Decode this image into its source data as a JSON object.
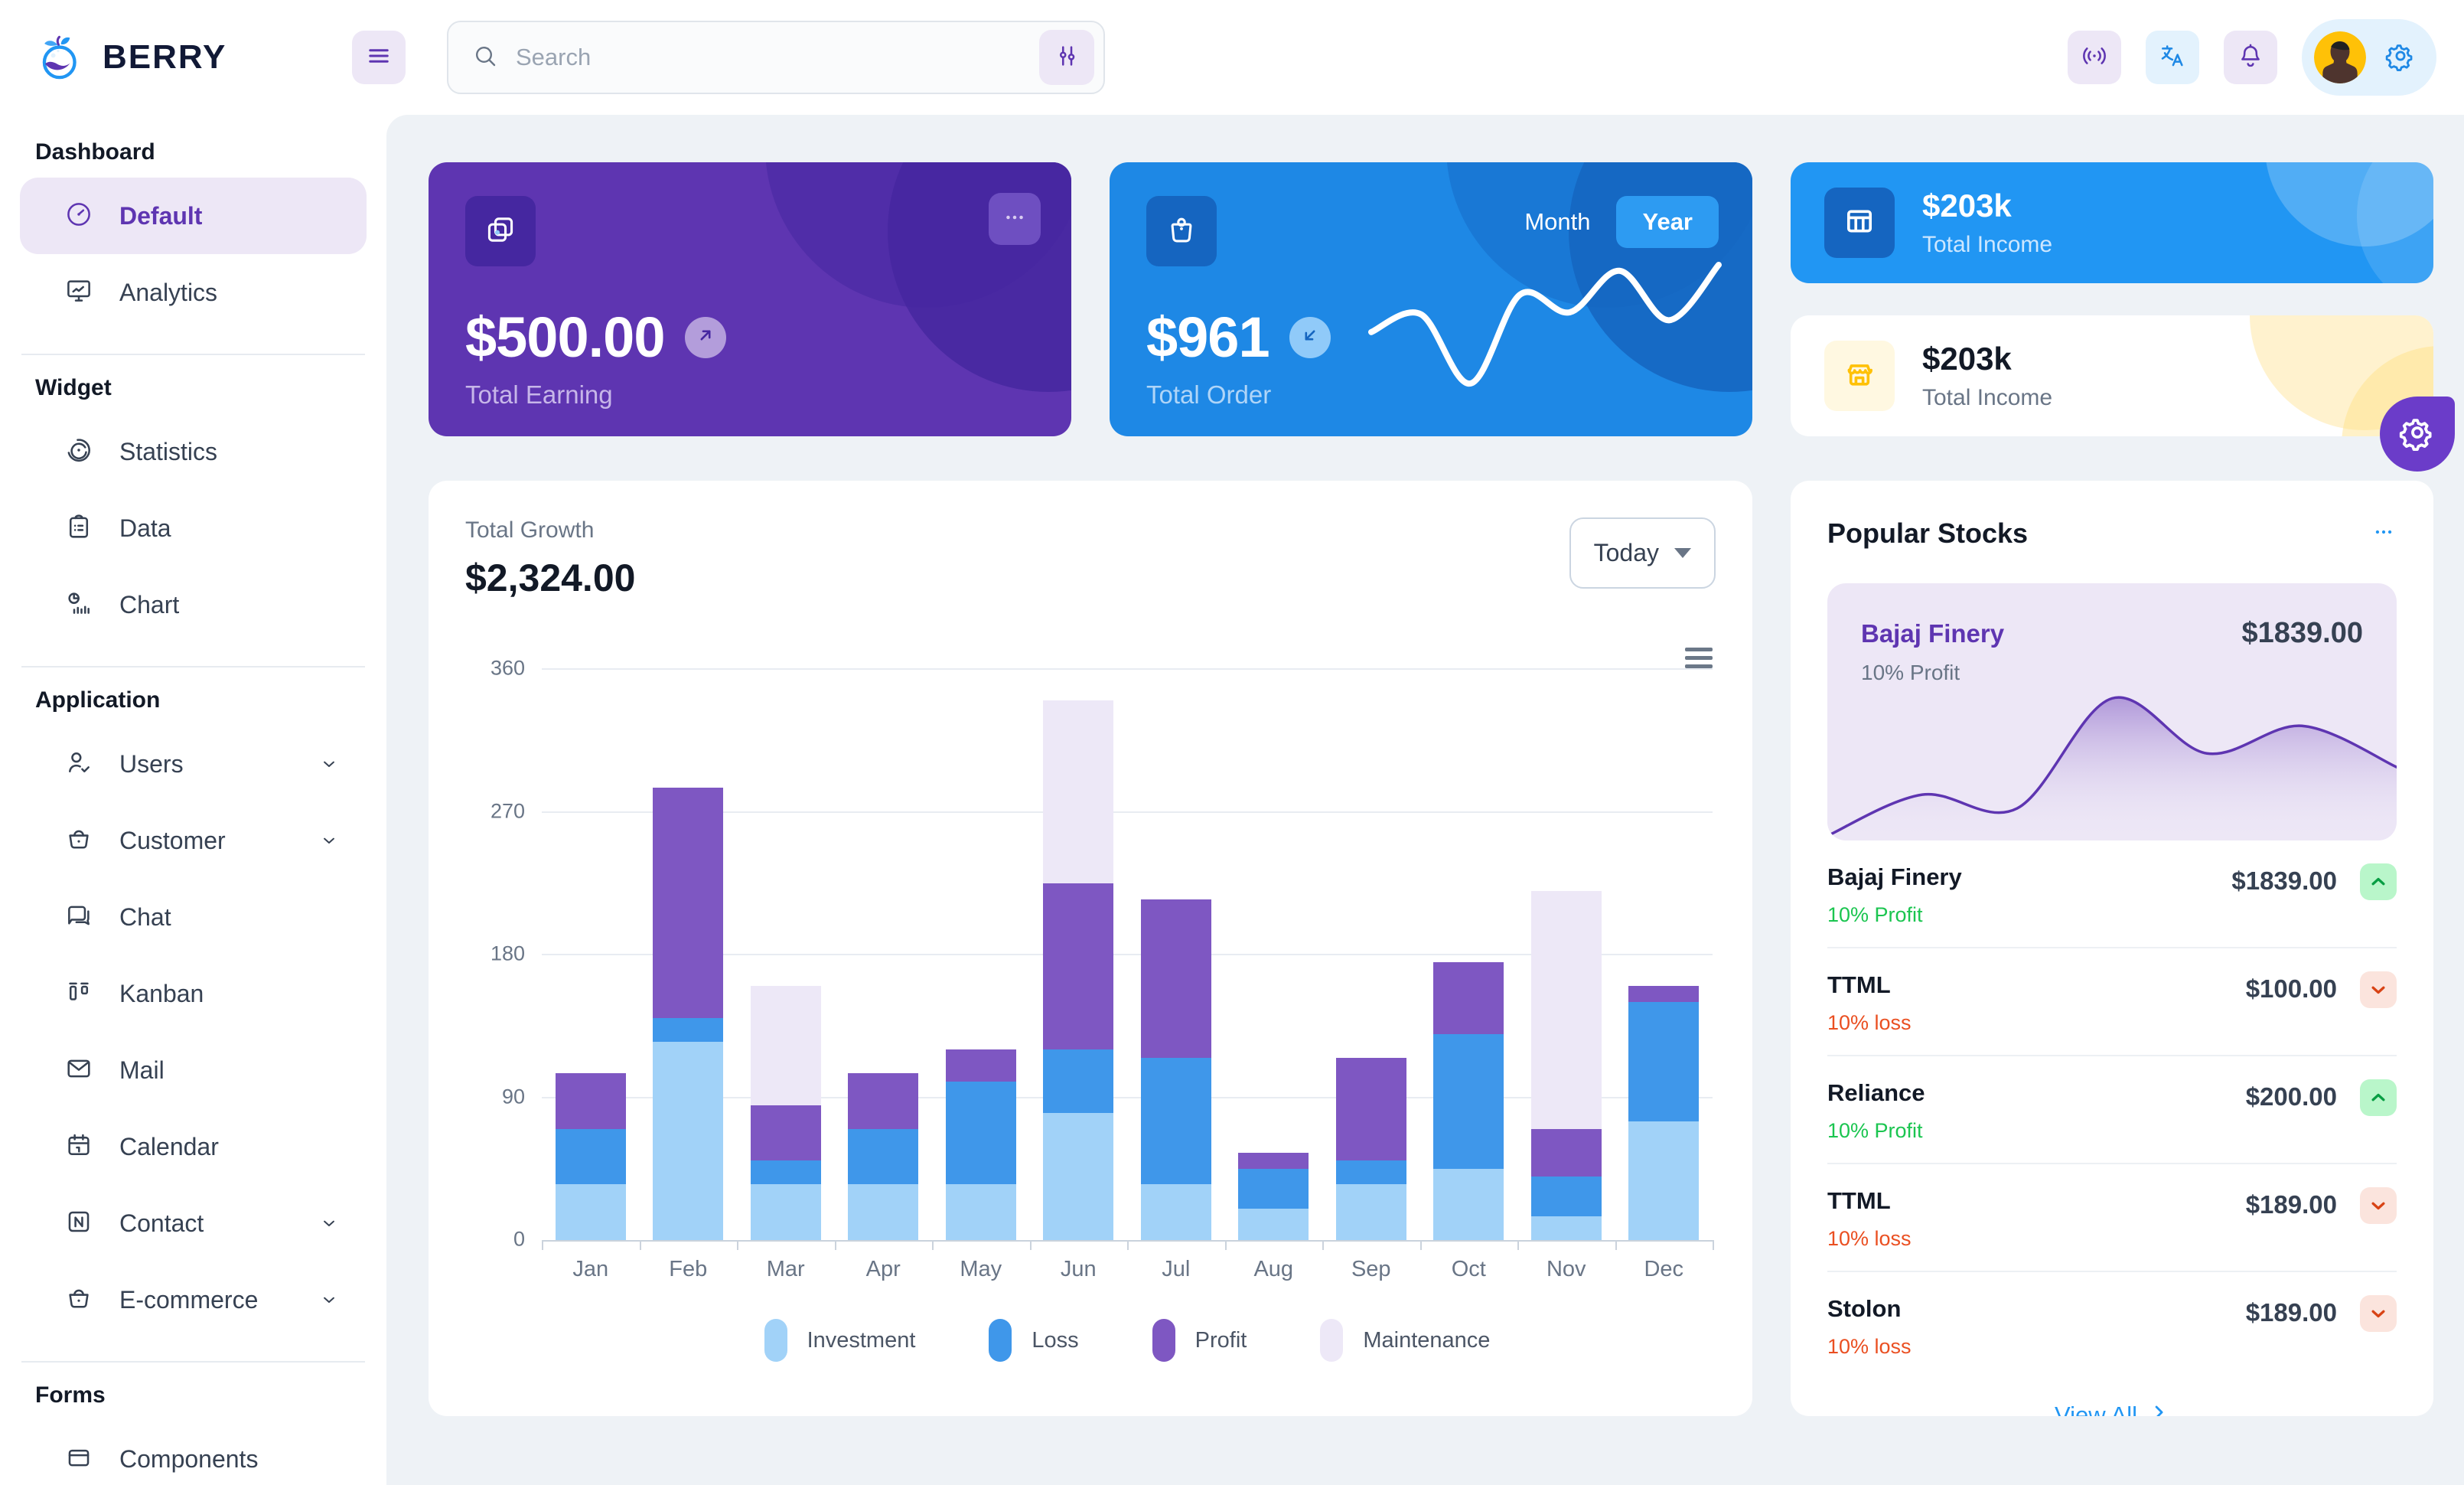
{
  "header": {
    "brand": "BERRY",
    "search": {
      "placeholder": "Search"
    },
    "icons": [
      "menu-icon",
      "search-icon",
      "adjustments-icon",
      "broadcast-icon",
      "translate-icon",
      "bell-icon",
      "settings-icon",
      "avatar"
    ]
  },
  "sidebar": {
    "sections": [
      {
        "label": "Dashboard",
        "items": [
          {
            "label": "Default",
            "icon": "gauge",
            "active": true
          },
          {
            "label": "Analytics",
            "icon": "analytics"
          }
        ]
      },
      {
        "label": "Widget",
        "items": [
          {
            "label": "Statistics",
            "icon": "stats"
          },
          {
            "label": "Data",
            "icon": "data"
          },
          {
            "label": "Chart",
            "icon": "chartw"
          }
        ]
      },
      {
        "label": "Application",
        "items": [
          {
            "label": "Users",
            "icon": "userv",
            "chevron": true
          },
          {
            "label": "Customer",
            "icon": "basket",
            "chevron": true
          },
          {
            "label": "Chat",
            "icon": "chat"
          },
          {
            "label": "Kanban",
            "icon": "kanban"
          },
          {
            "label": "Mail",
            "icon": "mail"
          },
          {
            "label": "Calendar",
            "icon": "calendar"
          },
          {
            "label": "Contact",
            "icon": "contact",
            "chevron": true
          },
          {
            "label": "E-commerce",
            "icon": "basket",
            "chevron": true
          }
        ]
      },
      {
        "label": "Forms",
        "items": [
          {
            "label": "Components",
            "icon": "components"
          }
        ]
      }
    ]
  },
  "cards": {
    "earning": {
      "value": "$500.00",
      "label": "Total Earning"
    },
    "order": {
      "value": "$961",
      "label": "Total Order",
      "toggle_month": "Month",
      "toggle_year": "Year",
      "selected": "Year",
      "sparkline": [
        35,
        44,
        9,
        54,
        45,
        66,
        41,
        69
      ]
    },
    "income_dark": {
      "value": "$203k",
      "label": "Total Income"
    },
    "income_light": {
      "value": "$203k",
      "label": "Total Income"
    }
  },
  "growth": {
    "label": "Total Growth",
    "value": "$2,324.00",
    "period": "Today",
    "chart_data": {
      "type": "bar",
      "stacked": true,
      "categories": [
        "Jan",
        "Feb",
        "Mar",
        "Apr",
        "May",
        "Jun",
        "Jul",
        "Aug",
        "Sep",
        "Oct",
        "Nov",
        "Dec"
      ],
      "series": [
        {
          "name": "Investment",
          "color": "#A1D2F8",
          "values": [
            35,
            125,
            35,
            35,
            35,
            80,
            35,
            20,
            35,
            45,
            15,
            75
          ]
        },
        {
          "name": "Loss",
          "color": "#3F97EA",
          "values": [
            35,
            15,
            15,
            35,
            65,
            40,
            80,
            25,
            15,
            85,
            25,
            75
          ]
        },
        {
          "name": "Profit",
          "color": "#7E57C2",
          "values": [
            35,
            145,
            35,
            35,
            20,
            105,
            100,
            10,
            65,
            45,
            30,
            10
          ]
        },
        {
          "name": "Maintenance",
          "color": "#EDE8F7",
          "values": [
            0,
            0,
            75,
            0,
            0,
            115,
            0,
            0,
            0,
            0,
            150,
            0
          ]
        }
      ],
      "ylim": [
        0,
        360
      ],
      "yticks": [
        0,
        90,
        180,
        270,
        360
      ],
      "xlabel": "",
      "ylabel": "",
      "grid": true,
      "legend_position": "bottom"
    }
  },
  "stocks": {
    "title": "Popular Stocks",
    "featured": {
      "name": "Bajaj Finery",
      "price": "$1839.00",
      "desc": "10% Profit",
      "series": [
        0,
        15,
        10,
        50,
        30,
        40,
        25
      ]
    },
    "items": [
      {
        "name": "Bajaj Finery",
        "price": "$1839.00",
        "change": "10% Profit",
        "direction": "up"
      },
      {
        "name": "TTML",
        "price": "$100.00",
        "change": "10% loss",
        "direction": "down"
      },
      {
        "name": "Reliance",
        "price": "$200.00",
        "change": "10% Profit",
        "direction": "up"
      },
      {
        "name": "TTML",
        "price": "$189.00",
        "change": "10% loss",
        "direction": "down"
      },
      {
        "name": "Stolon",
        "price": "$189.00",
        "change": "10% loss",
        "direction": "down"
      }
    ],
    "view_all": "View All"
  },
  "colors": {
    "page_bg": "#EEF2F6",
    "primary": "#2196F3",
    "primary_dark": "#1E88E5",
    "secondary": "#5E35B1",
    "secondary_light": "#EDE7F6",
    "warning": "#FFC107",
    "success": "#1BC550",
    "error": "#EA4F21"
  }
}
